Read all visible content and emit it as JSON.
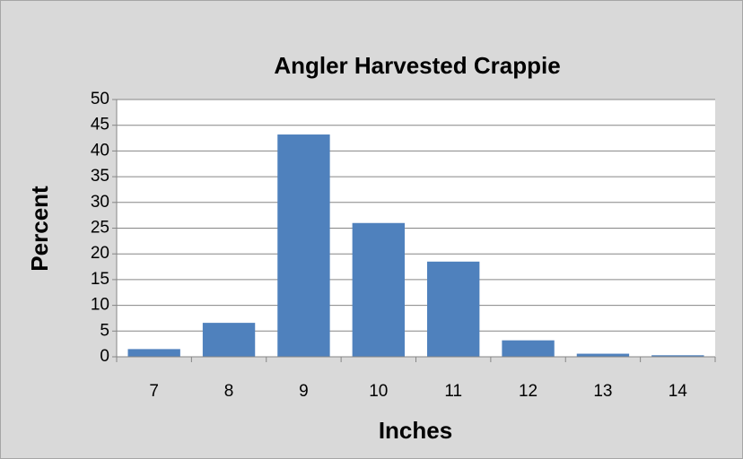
{
  "chart_data": {
    "type": "bar",
    "title": "Angler Harvested Crappie",
    "x_label": "Inches",
    "y_label": "Percent",
    "categories": [
      "7",
      "8",
      "9",
      "10",
      "11",
      "12",
      "13",
      "14"
    ],
    "values": [
      1.5,
      6.6,
      43.2,
      26,
      18.5,
      3.2,
      0.6,
      0.3
    ],
    "color": "#4f81bd",
    "ylim": [
      0,
      50
    ],
    "yticks": [
      0,
      5,
      10,
      15,
      20,
      25,
      30,
      35,
      40,
      45,
      50
    ],
    "grid": true
  }
}
